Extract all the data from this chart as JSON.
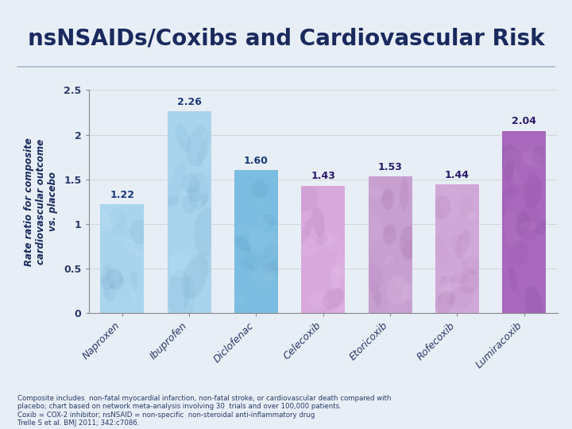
{
  "title": "nsNSAIDs/Coxibs and Cardiovascular Risk",
  "categories": [
    "Naproxen",
    "Ibuprofen",
    "Diclofenac",
    "Celecoxib",
    "Etoricoxib",
    "Rofecoxib",
    "Lumiracoxib"
  ],
  "values": [
    1.22,
    2.26,
    1.6,
    1.43,
    1.53,
    1.44,
    2.04
  ],
  "bar_base_colors": [
    "#A8D4EE",
    "#A8D4EE",
    "#7BBDE0",
    "#D8A8DC",
    "#C8A0D0",
    "#D0A8D8",
    "#A868BC"
  ],
  "bar_highlight_colors": [
    "#C8E8F8",
    "#C8E8F8",
    "#A0CCE8",
    "#EAC8EE",
    "#E0C0E8",
    "#E8C8F0",
    "#CC90D8"
  ],
  "bar_dark_colors": [
    "#78A8C8",
    "#78A8C8",
    "#5090B8",
    "#A870A8",
    "#9860A0",
    "#A870A8",
    "#804898"
  ],
  "value_colors_blue": "#1a3a7a",
  "value_colors_purple": "#2a1a6a",
  "ylabel": "Rate ratio for composite\ncardiovascular outcome\nvs. placebo",
  "ylim": [
    0,
    2.5
  ],
  "yticks": [
    0,
    0.5,
    1,
    1.5,
    2,
    2.5
  ],
  "bg_color": "#E8EEF5",
  "title_color": "#1a2a5e",
  "title_fontsize": 20,
  "footnote_line1": "Composite includes  non-fatal myocardial infarction, non-fatal stroke, or cardiovascular death compared with",
  "footnote_line2": "placebo; chart based on network meta-analysis involving 30  trials and over 100,000 patients.",
  "footnote_line3": "Coxib = COX-2 inhibitor; nsNSAID = non-specific  non-steroidal anti-inflammatory drug",
  "footnote_line4": "Trelle S et al. BMJ 2011; 342:c7086."
}
